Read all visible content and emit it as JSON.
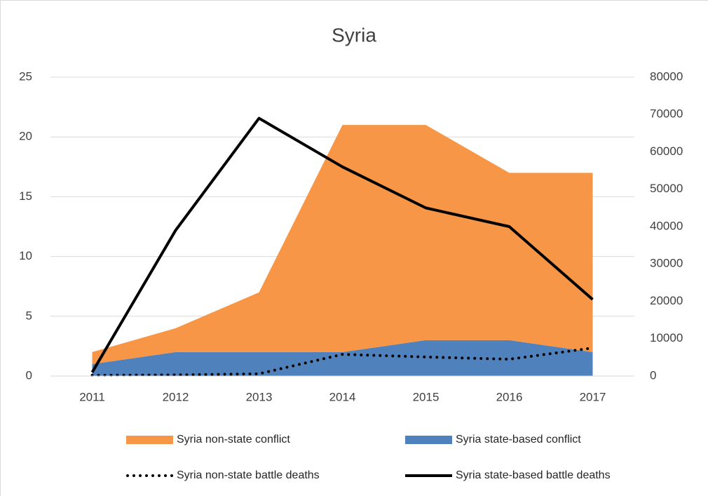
{
  "chart_data": {
    "type": "line",
    "title": "Syria",
    "categories": [
      "2011",
      "2012",
      "2013",
      "2014",
      "2015",
      "2016",
      "2017"
    ],
    "series": [
      {
        "name": "Syria non-state conflict",
        "color": "#f79646",
        "style": "area",
        "values": [
          1,
          2,
          5,
          19,
          18,
          14,
          15
        ]
      },
      {
        "name": "Syria state-based conflict",
        "color": "#4f81bd",
        "style": "area",
        "values": [
          1,
          2,
          2,
          2,
          3,
          3,
          2
        ]
      },
      {
        "name": "Syria non-state battle deaths",
        "color": "#000000",
        "style": "dotted",
        "axis": "y2",
        "values": [
          200,
          300,
          600,
          5800,
          5100,
          4500,
          7500
        ]
      },
      {
        "name": "Syria state-based battle deaths",
        "color": "#000000",
        "style": "solid",
        "axis": "y2",
        "values": [
          1000,
          39000,
          69000,
          56000,
          45000,
          40000,
          20500
        ]
      }
    ],
    "stacked": true,
    "ylim": [
      0,
      25
    ],
    "yticks": [
      0,
      5,
      10,
      15,
      20,
      25
    ],
    "y2lim": [
      0,
      80000
    ],
    "y2ticks": [
      0,
      10000,
      20000,
      30000,
      40000,
      50000,
      60000,
      70000,
      80000
    ],
    "grid": true,
    "legend": "bottom"
  }
}
